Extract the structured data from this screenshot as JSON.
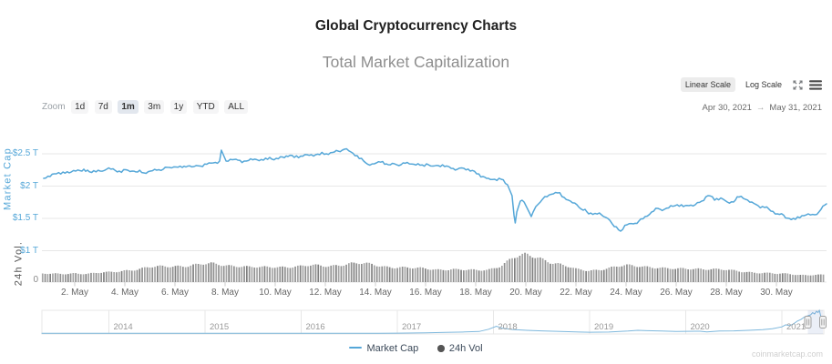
{
  "header": {
    "title": "Global Cryptocurrency Charts",
    "subtitle": "Total Market Capitalization"
  },
  "controls": {
    "zoom_label": "Zoom",
    "ranges": [
      {
        "label": "1d",
        "selected": false
      },
      {
        "label": "7d",
        "selected": false
      },
      {
        "label": "1m",
        "selected": true
      },
      {
        "label": "3m",
        "selected": false
      },
      {
        "label": "1y",
        "selected": false
      },
      {
        "label": "YTD",
        "selected": false
      },
      {
        "label": "ALL",
        "selected": false
      }
    ],
    "scale_buttons": [
      {
        "label": "Linear Scale",
        "selected": true
      },
      {
        "label": "Log Scale",
        "selected": false
      }
    ],
    "date_from": "Apr 30, 2021",
    "date_arrow": "→",
    "date_to": "May 31, 2021"
  },
  "chart_data": {
    "type": "line",
    "title": "Total Market Capitalization",
    "y_axis": {
      "title": "Market Cap",
      "unit": "$T",
      "ticks": [
        {
          "label": "$2.5 T",
          "value": 2.5
        },
        {
          "label": "$2 T",
          "value": 2.0
        },
        {
          "label": "$1.5 T",
          "value": 1.5
        },
        {
          "label": "$1 T",
          "value": 1.0
        }
      ],
      "zero_label": "0"
    },
    "y2_axis": {
      "title": "24h Vol."
    },
    "x_axis": {
      "ticks": [
        {
          "label": "2. May",
          "day": 2
        },
        {
          "label": "4. May",
          "day": 4
        },
        {
          "label": "6. May",
          "day": 6
        },
        {
          "label": "8. May",
          "day": 8
        },
        {
          "label": "10. May",
          "day": 10
        },
        {
          "label": "12. May",
          "day": 12
        },
        {
          "label": "14. May",
          "day": 14
        },
        {
          "label": "16. May",
          "day": 16
        },
        {
          "label": "18. May",
          "day": 18
        },
        {
          "label": "20. May",
          "day": 20
        },
        {
          "label": "22. May",
          "day": 22
        },
        {
          "label": "24. May",
          "day": 24
        },
        {
          "label": "26. May",
          "day": 26
        },
        {
          "label": "28. May",
          "day": 28
        },
        {
          "label": "30. May",
          "day": 30
        }
      ]
    },
    "series": [
      {
        "name": "Market Cap",
        "type": "line",
        "color": "#55a7d8",
        "unit": "$T, x = day of May 2021",
        "points": [
          [
            0.76,
            2.12
          ],
          [
            1.02,
            2.148
          ],
          [
            1.27,
            2.19
          ],
          [
            1.53,
            2.218
          ],
          [
            1.78,
            2.204
          ],
          [
            2.04,
            2.232
          ],
          [
            2.29,
            2.232
          ],
          [
            2.51,
            2.246
          ],
          [
            2.76,
            2.239
          ],
          [
            3.02,
            2.232
          ],
          [
            3.27,
            2.261
          ],
          [
            3.53,
            2.268
          ],
          [
            3.78,
            2.232
          ],
          [
            4.04,
            2.254
          ],
          [
            4.29,
            2.232
          ],
          [
            4.51,
            2.218
          ],
          [
            4.76,
            2.204
          ],
          [
            5.02,
            2.232
          ],
          [
            5.27,
            2.246
          ],
          [
            5.53,
            2.261
          ],
          [
            5.78,
            2.289
          ],
          [
            6.04,
            2.296
          ],
          [
            6.29,
            2.289
          ],
          [
            6.51,
            2.31
          ],
          [
            6.76,
            2.303
          ],
          [
            7.02,
            2.31
          ],
          [
            7.27,
            2.338
          ],
          [
            7.53,
            2.359
          ],
          [
            7.78,
            2.387
          ],
          [
            7.85,
            2.556
          ],
          [
            8.04,
            2.387
          ],
          [
            8.29,
            2.408
          ],
          [
            8.51,
            2.401
          ],
          [
            8.76,
            2.387
          ],
          [
            9.02,
            2.423
          ],
          [
            9.27,
            2.408
          ],
          [
            9.53,
            2.401
          ],
          [
            9.78,
            2.444
          ],
          [
            10.04,
            2.43
          ],
          [
            10.29,
            2.451
          ],
          [
            10.51,
            2.458
          ],
          [
            10.76,
            2.444
          ],
          [
            11.02,
            2.465
          ],
          [
            11.27,
            2.486
          ],
          [
            11.53,
            2.465
          ],
          [
            11.78,
            2.486
          ],
          [
            12.04,
            2.5
          ],
          [
            12.29,
            2.521
          ],
          [
            12.51,
            2.542
          ],
          [
            12.76,
            2.57
          ],
          [
            13.02,
            2.528
          ],
          [
            13.27,
            2.472
          ],
          [
            13.53,
            2.387
          ],
          [
            13.78,
            2.324
          ],
          [
            14.04,
            2.359
          ],
          [
            14.29,
            2.38
          ],
          [
            14.51,
            2.331
          ],
          [
            14.76,
            2.345
          ],
          [
            15.02,
            2.331
          ],
          [
            15.27,
            2.366
          ],
          [
            15.53,
            2.338
          ],
          [
            15.78,
            2.324
          ],
          [
            16.04,
            2.345
          ],
          [
            16.29,
            2.31
          ],
          [
            16.51,
            2.317
          ],
          [
            16.76,
            2.303
          ],
          [
            17.02,
            2.275
          ],
          [
            17.27,
            2.261
          ],
          [
            17.53,
            2.275
          ],
          [
            17.78,
            2.232
          ],
          [
            18.04,
            2.19
          ],
          [
            18.29,
            2.148
          ],
          [
            18.51,
            2.12
          ],
          [
            18.76,
            2.106
          ],
          [
            19.02,
            2.106
          ],
          [
            19.27,
            2.021
          ],
          [
            19.45,
            1.852
          ],
          [
            19.53,
            1.542
          ],
          [
            19.58,
            1.43
          ],
          [
            19.64,
            1.599
          ],
          [
            19.71,
            1.683
          ],
          [
            19.78,
            1.768
          ],
          [
            19.85,
            1.782
          ],
          [
            19.93,
            1.754
          ],
          [
            20.04,
            1.669
          ],
          [
            20.15,
            1.585
          ],
          [
            20.22,
            1.528
          ],
          [
            20.29,
            1.599
          ],
          [
            20.4,
            1.683
          ],
          [
            20.51,
            1.725
          ],
          [
            20.76,
            1.838
          ],
          [
            21.02,
            1.873
          ],
          [
            21.27,
            1.894
          ],
          [
            21.53,
            1.824
          ],
          [
            21.78,
            1.768
          ],
          [
            22.04,
            1.711
          ],
          [
            22.29,
            1.627
          ],
          [
            22.51,
            1.57
          ],
          [
            22.76,
            1.577
          ],
          [
            23.02,
            1.556
          ],
          [
            23.27,
            1.5
          ],
          [
            23.53,
            1.373
          ],
          [
            23.78,
            1.303
          ],
          [
            24.04,
            1.401
          ],
          [
            24.29,
            1.415
          ],
          [
            24.51,
            1.458
          ],
          [
            24.76,
            1.528
          ],
          [
            25.02,
            1.599
          ],
          [
            25.27,
            1.655
          ],
          [
            25.53,
            1.641
          ],
          [
            25.78,
            1.697
          ],
          [
            26.04,
            1.711
          ],
          [
            26.29,
            1.683
          ],
          [
            26.51,
            1.697
          ],
          [
            26.76,
            1.711
          ],
          [
            27.02,
            1.768
          ],
          [
            27.27,
            1.852
          ],
          [
            27.53,
            1.782
          ],
          [
            27.78,
            1.817
          ],
          [
            28.04,
            1.754
          ],
          [
            28.29,
            1.754
          ],
          [
            28.51,
            1.831
          ],
          [
            28.76,
            1.796
          ],
          [
            29.02,
            1.754
          ],
          [
            29.27,
            1.697
          ],
          [
            29.53,
            1.669
          ],
          [
            29.78,
            1.613
          ],
          [
            30.04,
            1.57
          ],
          [
            30.29,
            1.549
          ],
          [
            30.51,
            1.5
          ],
          [
            30.76,
            1.486
          ],
          [
            31.02,
            1.542
          ],
          [
            31.27,
            1.57
          ],
          [
            31.53,
            1.556
          ],
          [
            31.78,
            1.641
          ],
          [
            32.0,
            1.725
          ]
        ]
      },
      {
        "name": "24h Vol",
        "type": "column",
        "color": "#999999",
        "unit": "$B, x = day of May 2021",
        "points": [
          [
            0.7,
            150
          ],
          [
            1,
            150
          ],
          [
            1.5,
            150
          ],
          [
            2,
            167
          ],
          [
            2.5,
            150
          ],
          [
            3,
            167
          ],
          [
            3.5,
            184
          ],
          [
            4,
            217
          ],
          [
            4.5,
            234
          ],
          [
            5,
            267
          ],
          [
            5.5,
            284
          ],
          [
            6,
            300
          ],
          [
            6.5,
            300
          ],
          [
            7,
            317
          ],
          [
            7.5,
            334
          ],
          [
            8,
            317
          ],
          [
            8.5,
            300
          ],
          [
            9,
            267
          ],
          [
            9.5,
            267
          ],
          [
            10,
            284
          ],
          [
            10.5,
            284
          ],
          [
            11,
            284
          ],
          [
            11.5,
            300
          ],
          [
            12,
            300
          ],
          [
            12.5,
            317
          ],
          [
            13,
            334
          ],
          [
            13.5,
            334
          ],
          [
            14,
            317
          ],
          [
            14.5,
            284
          ],
          [
            15,
            267
          ],
          [
            15.5,
            250
          ],
          [
            16,
            250
          ],
          [
            16.5,
            234
          ],
          [
            17,
            234
          ],
          [
            17.5,
            217
          ],
          [
            18,
            217
          ],
          [
            18.5,
            234
          ],
          [
            19,
            300
          ],
          [
            19.5,
            434
          ],
          [
            20,
            500
          ],
          [
            20.5,
            467
          ],
          [
            21,
            367
          ],
          [
            21.5,
            300
          ],
          [
            22,
            234
          ],
          [
            22.5,
            217
          ],
          [
            23,
            234
          ],
          [
            23.5,
            267
          ],
          [
            24,
            300
          ],
          [
            24.5,
            300
          ],
          [
            25,
            284
          ],
          [
            25.5,
            250
          ],
          [
            26,
            234
          ],
          [
            26.5,
            250
          ],
          [
            27,
            250
          ],
          [
            27.5,
            234
          ],
          [
            28,
            217
          ],
          [
            28.5,
            200
          ],
          [
            29,
            184
          ],
          [
            29.5,
            167
          ],
          [
            30,
            150
          ],
          [
            30.5,
            150
          ],
          [
            31,
            133
          ],
          [
            31.5,
            133
          ],
          [
            32,
            130
          ]
        ]
      }
    ],
    "navigator": {
      "year_labels": [
        "2014",
        "2015",
        "2016",
        "2017",
        "2018",
        "2019",
        "2020",
        "2021"
      ],
      "series_unit": "$T, x = year",
      "points": [
        [
          2013.3,
          0.002
        ],
        [
          2013.6,
          0.01
        ],
        [
          2013.95,
          0.015
        ],
        [
          2014.3,
          0.008
        ],
        [
          2014.8,
          0.006
        ],
        [
          2015.3,
          0.004
        ],
        [
          2015.8,
          0.005
        ],
        [
          2016.3,
          0.009
        ],
        [
          2016.8,
          0.013
        ],
        [
          2017.0,
          0.018
        ],
        [
          2017.3,
          0.06
        ],
        [
          2017.5,
          0.1
        ],
        [
          2017.7,
          0.15
        ],
        [
          2017.85,
          0.2
        ],
        [
          2017.95,
          0.45
        ],
        [
          2018.03,
          0.79
        ],
        [
          2018.1,
          0.55
        ],
        [
          2018.2,
          0.42
        ],
        [
          2018.35,
          0.33
        ],
        [
          2018.5,
          0.27
        ],
        [
          2018.7,
          0.21
        ],
        [
          2018.9,
          0.14
        ],
        [
          2019.0,
          0.12
        ],
        [
          2019.2,
          0.14
        ],
        [
          2019.4,
          0.25
        ],
        [
          2019.5,
          0.33
        ],
        [
          2019.6,
          0.29
        ],
        [
          2019.75,
          0.26
        ],
        [
          2019.9,
          0.2
        ],
        [
          2020.0,
          0.22
        ],
        [
          2020.15,
          0.23
        ],
        [
          2020.22,
          0.15
        ],
        [
          2020.35,
          0.25
        ],
        [
          2020.5,
          0.27
        ],
        [
          2020.65,
          0.33
        ],
        [
          2020.8,
          0.4
        ],
        [
          2020.9,
          0.5
        ],
        [
          2021.0,
          0.72
        ],
        [
          2021.04,
          0.95
        ],
        [
          2021.08,
          0.85
        ],
        [
          2021.12,
          1.05
        ],
        [
          2021.16,
          1.35
        ],
        [
          2021.2,
          1.55
        ],
        [
          2021.24,
          1.85
        ],
        [
          2021.27,
          1.95
        ],
        [
          2021.3,
          2.05
        ],
        [
          2021.32,
          2.3
        ],
        [
          2021.34,
          2.15
        ],
        [
          2021.36,
          2.45
        ],
        [
          2021.375,
          2.3
        ],
        [
          2021.39,
          2.55
        ],
        [
          2021.4,
          2.1
        ],
        [
          2021.41,
          1.65
        ]
      ],
      "selected_from": "Apr 30, 2021",
      "selected_to": "May 31, 2021"
    }
  },
  "legend": [
    {
      "label": "Market Cap",
      "marker": "line",
      "color": "#55a7d8"
    },
    {
      "label": "24h Vol",
      "marker": "circle",
      "color": "#555555"
    }
  ],
  "watermark": "coinmarketcap.com"
}
